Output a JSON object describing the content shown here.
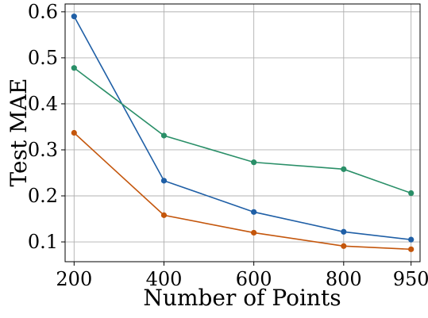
{
  "chart_data": {
    "type": "line",
    "title": "",
    "xlabel": "Number of Points",
    "ylabel": "Test MAE",
    "x": [
      200,
      400,
      600,
      800,
      950
    ],
    "x_tick_labels": [
      "200",
      "400",
      "600",
      "800",
      "950"
    ],
    "y_ticks": [
      0.1,
      0.2,
      0.3,
      0.4,
      0.5,
      0.6
    ],
    "y_tick_labels": [
      "0.1",
      "0.2",
      "0.3",
      "0.4",
      "0.5",
      "0.6"
    ],
    "xlim": [
      180,
      970
    ],
    "ylim": [
      0.057,
      0.617
    ],
    "grid": true,
    "legend": "none",
    "series": [
      {
        "color": "#1f5fa6",
        "values": [
          0.59,
          0.233,
          0.165,
          0.122,
          0.105
        ]
      },
      {
        "color": "#2a8f68",
        "values": [
          0.478,
          0.331,
          0.273,
          0.258,
          0.206
        ]
      },
      {
        "color": "#c4560c",
        "values": [
          0.337,
          0.158,
          0.12,
          0.091,
          0.084
        ]
      }
    ]
  }
}
